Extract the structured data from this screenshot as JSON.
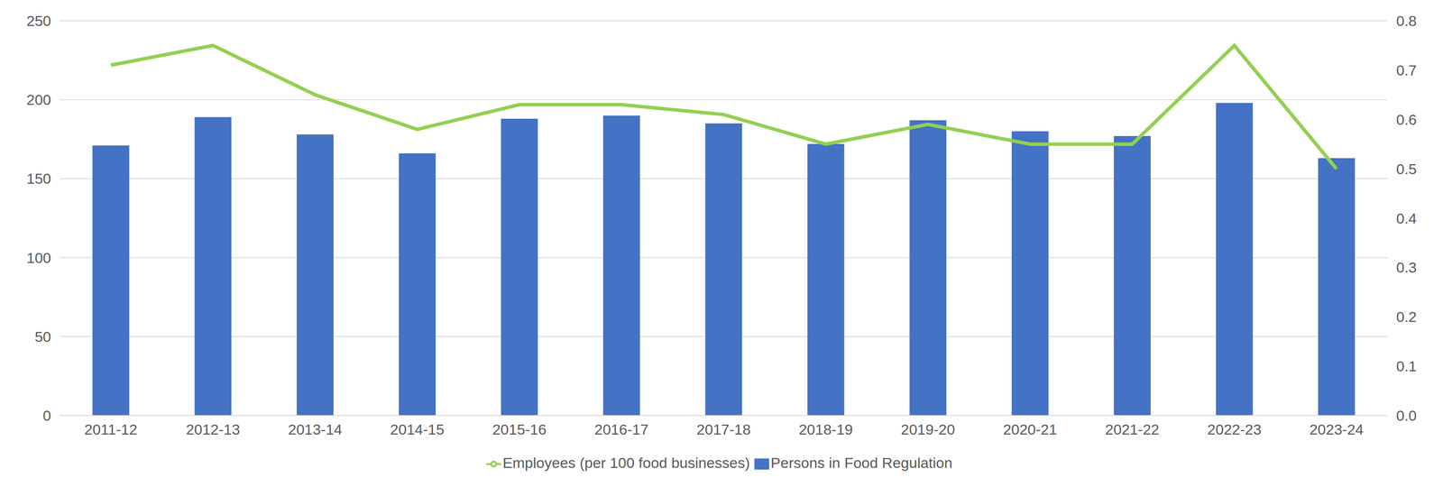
{
  "chart_data": {
    "type": "bar",
    "categories": [
      "2011-12",
      "2012-13",
      "2013-14",
      "2014-15",
      "2015-16",
      "2016-17",
      "2017-18",
      "2018-19",
      "2019-20",
      "2020-21",
      "2021-22",
      "2022-23",
      "2023-24"
    ],
    "series": [
      {
        "name": "Persons in Food Regulation",
        "type": "bar",
        "color": "#4472c4",
        "values": [
          171,
          189,
          178,
          166,
          188,
          190,
          185,
          172,
          187,
          180,
          177,
          198,
          163
        ]
      },
      {
        "name": "Employees (per 100 food businesses)",
        "type": "line",
        "axis": "y2",
        "color": "#92d050",
        "values": [
          0.71,
          0.75,
          0.65,
          0.58,
          0.63,
          0.63,
          0.61,
          0.55,
          0.59,
          0.55,
          0.55,
          0.75,
          0.5
        ]
      }
    ],
    "ylim": [
      0,
      250
    ],
    "yticks": [
      0,
      50,
      100,
      150,
      200,
      250
    ],
    "y2lim": [
      0,
      0.8
    ],
    "y2ticks": [
      {
        "value": 0,
        "label": "0.0"
      },
      0.1,
      0.2,
      0.3,
      0.4,
      0.5,
      0.6,
      0.7,
      0.8
    ],
    "grid": true,
    "legend": "bottom"
  }
}
